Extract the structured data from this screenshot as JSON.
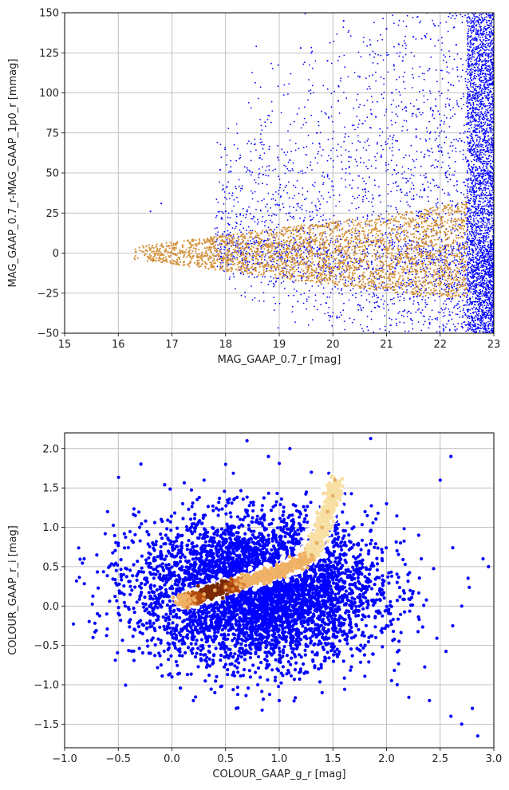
{
  "chart_data": [
    {
      "type": "scatter",
      "xlabel": "MAG_GAAP_0.7_r [mag]",
      "ylabel": "MAG_GAAP_0.7_r-MAG_GAAP_1p0_r [mmag]",
      "xlim": [
        15,
        23
      ],
      "ylim": [
        -50,
        150
      ],
      "xticks": [
        "15",
        "16",
        "17",
        "18",
        "19",
        "20",
        "21",
        "22",
        "23"
      ],
      "yticks": [
        "−50",
        "−25",
        "0",
        "25",
        "50",
        "75",
        "100",
        "125",
        "150"
      ],
      "grid": true,
      "series": [
        {
          "color": "#0000ff",
          "points": [
            [
              16.6,
              26
            ],
            [
              16.8,
              31
            ],
            [
              17.9,
              52
            ],
            [
              18.0,
              26
            ],
            [
              18.4,
              26
            ],
            [
              18.7,
              49
            ],
            [
              19.0,
              30
            ],
            [
              19.2,
              58
            ],
            [
              19.4,
              128
            ],
            [
              19.6,
              125
            ],
            [
              19.7,
              75
            ],
            [
              19.9,
              120
            ],
            [
              20.1,
              95
            ],
            [
              20.2,
              145
            ],
            [
              20.3,
              60
            ],
            [
              20.5,
              110
            ],
            [
              20.6,
              40
            ],
            [
              20.7,
              130
            ],
            [
              20.8,
              85
            ],
            [
              20.9,
              60
            ],
            [
              21.0,
              140
            ],
            [
              21.1,
              100
            ],
            [
              21.2,
              70
            ],
            [
              21.3,
              120
            ],
            [
              21.4,
              45
            ],
            [
              21.5,
              135
            ],
            [
              21.6,
              90
            ],
            [
              21.7,
              60
            ],
            [
              21.8,
              115
            ],
            [
              21.9,
              142
            ],
            [
              22.0,
              80
            ],
            [
              22.1,
              50
            ],
            [
              22.2,
              105
            ],
            [
              22.3,
              130
            ],
            [
              22.4,
              70
            ],
            [
              22.5,
              145
            ],
            [
              22.6,
              40
            ],
            [
              22.7,
              100
            ],
            [
              22.8,
              -30
            ],
            [
              22.9,
              120
            ],
            [
              22.6,
              -40
            ],
            [
              22.9,
              -45
            ],
            [
              22.7,
              60
            ],
            [
              22.8,
              145
            ],
            [
              22.9,
              10
            ]
          ]
        },
        {
          "color": "#d4913a",
          "points": [
            [
              16.3,
              -3
            ],
            [
              16.6,
              2
            ],
            [
              16.9,
              -4
            ],
            [
              17.2,
              5
            ],
            [
              17.5,
              -2
            ],
            [
              17.8,
              3
            ],
            [
              18.1,
              -5
            ],
            [
              18.4,
              4
            ],
            [
              18.7,
              -1
            ],
            [
              19.0,
              6
            ],
            [
              19.3,
              -6
            ],
            [
              19.6,
              2
            ],
            [
              19.9,
              8
            ],
            [
              20.2,
              -7
            ],
            [
              20.5,
              12
            ],
            [
              20.8,
              -10
            ],
            [
              21.1,
              15
            ],
            [
              21.4,
              -12
            ],
            [
              21.7,
              20
            ],
            [
              22.0,
              -15
            ],
            [
              22.2,
              25
            ],
            [
              22.4,
              -20
            ],
            [
              22.5,
              35
            ],
            [
              22.5,
              -25
            ]
          ]
        }
      ]
    },
    {
      "type": "scatter",
      "xlabel": "COLOUR_GAAP_g_r [mag]",
      "ylabel": "COLOUR_GAAP_r_i [mag]",
      "xlim": [
        -1.0,
        3.0
      ],
      "ylim": [
        -1.8,
        2.2
      ],
      "xticks": [
        "−1.0",
        "−0.5",
        "0.0",
        "0.5",
        "1.0",
        "1.5",
        "2.0",
        "2.5",
        "3.0"
      ],
      "yticks": [
        "−1.5",
        "−1.0",
        "−0.5",
        "0.0",
        "0.5",
        "1.0",
        "1.5",
        "2.0"
      ],
      "grid": true,
      "series": [
        {
          "color": "#0000ff",
          "points": [
            [
              -0.7,
              0.65
            ],
            [
              -0.6,
              1.2
            ],
            [
              -0.5,
              0.8
            ],
            [
              -0.45,
              0.4
            ],
            [
              -0.4,
              -0.2
            ],
            [
              -0.3,
              1.0
            ],
            [
              -0.2,
              -0.6
            ],
            [
              -0.1,
              1.1
            ],
            [
              0.0,
              -0.9
            ],
            [
              0.1,
              1.3
            ],
            [
              0.2,
              -1.2
            ],
            [
              0.3,
              1.6
            ],
            [
              0.4,
              -1.1
            ],
            [
              0.5,
              1.8
            ],
            [
              0.6,
              -1.3
            ],
            [
              0.7,
              2.1
            ],
            [
              0.8,
              -1.0
            ],
            [
              0.9,
              1.9
            ],
            [
              1.0,
              -1.2
            ],
            [
              1.1,
              2.0
            ],
            [
              1.2,
              -0.8
            ],
            [
              1.3,
              1.7
            ],
            [
              1.4,
              -1.1
            ],
            [
              1.6,
              -0.7
            ],
            [
              1.8,
              1.2
            ],
            [
              1.9,
              -0.4
            ],
            [
              2.0,
              1.3
            ],
            [
              2.1,
              -1.0
            ],
            [
              2.3,
              0.9
            ],
            [
              2.4,
              -1.2
            ],
            [
              2.5,
              1.6
            ],
            [
              2.6,
              1.9
            ],
            [
              2.6,
              -1.4
            ],
            [
              2.7,
              -1.5
            ],
            [
              2.8,
              -1.3
            ],
            [
              2.85,
              -1.65
            ],
            [
              2.9,
              0.6
            ],
            [
              2.95,
              0.5
            ],
            [
              1.8,
              -0.5
            ],
            [
              2.2,
              0.4
            ],
            [
              2.7,
              0.0
            ]
          ]
        },
        {
          "color": "#e8b062",
          "points": [
            [
              0.1,
              0.05
            ],
            [
              0.2,
              0.1
            ],
            [
              0.3,
              0.15
            ],
            [
              0.4,
              0.2
            ],
            [
              0.5,
              0.24
            ],
            [
              0.6,
              0.28
            ],
            [
              0.7,
              0.32
            ],
            [
              0.8,
              0.36
            ],
            [
              0.9,
              0.4
            ],
            [
              1.0,
              0.44
            ],
            [
              1.1,
              0.5
            ],
            [
              1.2,
              0.56
            ],
            [
              1.3,
              0.65
            ],
            [
              1.35,
              0.8
            ],
            [
              1.4,
              1.0
            ],
            [
              1.45,
              1.2
            ],
            [
              1.5,
              1.4
            ],
            [
              1.52,
              1.6
            ]
          ]
        }
      ]
    }
  ]
}
